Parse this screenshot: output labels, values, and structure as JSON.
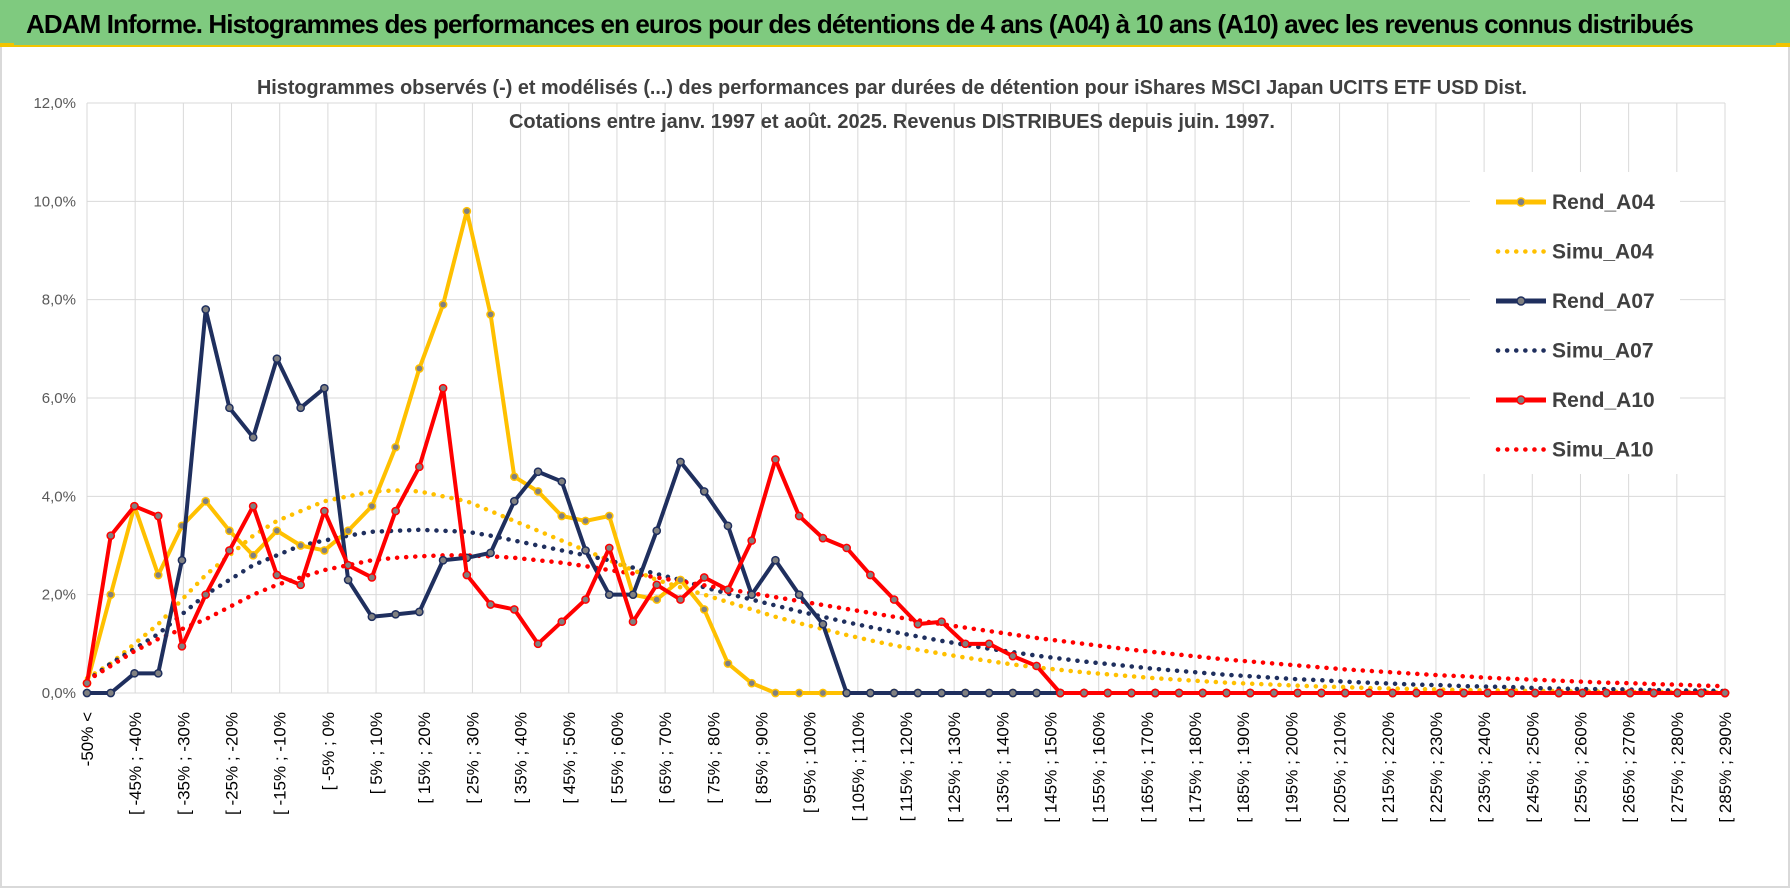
{
  "header": {
    "title": "ADAM Informe. Histogrammes des performances en euros pour des détentions de 4 ans (A04) à 10 ans (A10) avec les revenus connus distribués"
  },
  "colors": {
    "header_bg": "#7fca7f",
    "accent": "#f2c400",
    "A04": "#ffc000",
    "A07": "#1f2f5e",
    "A10": "#ff0000"
  },
  "chart_data": {
    "type": "line",
    "title": "Histogrammes observés (-) et modélisés (...) des performances par durées de détention pour iShares MSCI Japan UCITS ETF USD Dist.",
    "subtitle": "Cotations entre janv. 1997 et août. 2025. Revenus DISTRIBUES depuis juin. 1997.",
    "xlabel": "",
    "ylabel": "",
    "ylim": [
      0,
      12
    ],
    "y_ticks": [
      "0,0%",
      "2,0%",
      "4,0%",
      "6,0%",
      "8,0%",
      "10,0%",
      "12,0%"
    ],
    "grid": true,
    "legend_position": "right",
    "x_tick_labels": [
      "-50% <",
      "[ -45% ; -40%",
      "[ -35% ; -30%",
      "[ -25% ; -20%",
      "[ -15% ; -10%",
      "[ -5% ; 0%",
      "[ 5% ; 10%",
      "[ 15% ; 20%",
      "[ 25% ; 30%",
      "[ 35% ; 40%",
      "[ 45% ; 50%",
      "[ 55% ; 60%",
      "[ 65% ; 70%",
      "[ 75% ; 80%",
      "[ 85% ; 90%",
      "[ 95% ; 100%",
      "[ 105% ; 110%",
      "[ 115% ; 120%",
      "[ 125% ; 130%",
      "[ 135% ; 140%",
      "[ 145% ; 150%",
      "[ 155% ; 160%",
      "[ 165% ; 170%",
      "[ 175% ; 180%",
      "[ 185% ; 190%",
      "[ 195% ; 200%",
      "[ 205% ; 210%",
      "[ 215% ; 220%",
      "[ 225% ; 230%",
      "[ 235% ; 240%",
      "[ 245% ; 250%",
      "[ 255% ; 260%",
      "[ 265% ; 270%",
      "[ 275% ; 280%",
      "[ 285% ; 290%"
    ],
    "series": [
      {
        "name": "Rend_A04",
        "style": "solid",
        "color": "#ffc000",
        "values": [
          0.2,
          2.0,
          3.8,
          2.4,
          3.4,
          3.9,
          3.3,
          2.8,
          3.3,
          3.0,
          2.9,
          3.3,
          3.8,
          5.0,
          6.6,
          7.9,
          9.8,
          7.7,
          4.4,
          4.1,
          3.6,
          3.5,
          3.6,
          2.0,
          1.9,
          2.3,
          1.7,
          0.6,
          0.2,
          0,
          0,
          0,
          0,
          0,
          0,
          0,
          0,
          0,
          0,
          0,
          0,
          0,
          0,
          0,
          0,
          0,
          0,
          0,
          0,
          0,
          0,
          0,
          0,
          0,
          0,
          0,
          0,
          0,
          0,
          0,
          0,
          0,
          0,
          0,
          0,
          0,
          0,
          0,
          0,
          0
        ]
      },
      {
        "name": "Simu_A04",
        "style": "dotted",
        "color": "#ffc000",
        "values": [
          0.3,
          0.6,
          1.0,
          1.4,
          1.9,
          2.4,
          2.8,
          3.2,
          3.5,
          3.7,
          3.9,
          4.0,
          4.1,
          4.12,
          4.1,
          4.0,
          3.9,
          3.7,
          3.5,
          3.3,
          3.1,
          2.9,
          2.7,
          2.5,
          2.3,
          2.15,
          2.0,
          1.85,
          1.7,
          1.55,
          1.42,
          1.3,
          1.18,
          1.07,
          0.97,
          0.88,
          0.8,
          0.72,
          0.65,
          0.58,
          0.52,
          0.47,
          0.42,
          0.38,
          0.34,
          0.3,
          0.27,
          0.24,
          0.21,
          0.19,
          0.17,
          0.15,
          0.13,
          0.12,
          0.1,
          0.09,
          0.08,
          0.07,
          0.06,
          0.05,
          0.05,
          0.04,
          0.04,
          0.03,
          0.03,
          0.02,
          0.02,
          0.02,
          0.02,
          0.01
        ]
      },
      {
        "name": "Rend_A07",
        "style": "solid",
        "color": "#1f2f5e",
        "values": [
          0,
          0,
          0.4,
          0.4,
          2.7,
          7.8,
          5.8,
          5.2,
          6.8,
          5.8,
          6.2,
          2.3,
          1.55,
          1.6,
          1.65,
          2.7,
          2.75,
          2.85,
          3.9,
          4.5,
          4.3,
          2.9,
          2.0,
          2.0,
          3.3,
          4.7,
          4.1,
          3.4,
          2.0,
          2.7,
          2.0,
          1.4,
          0,
          0,
          0,
          0,
          0,
          0,
          0,
          0,
          0,
          0,
          0,
          0,
          0,
          0,
          0,
          0,
          0,
          0,
          0,
          0,
          0,
          0,
          0,
          0,
          0,
          0,
          0,
          0,
          0,
          0,
          0,
          0,
          0,
          0,
          0,
          0,
          0,
          0
        ]
      },
      {
        "name": "Simu_A07",
        "style": "dotted",
        "color": "#1f2f5e",
        "values": [
          0.25,
          0.6,
          0.9,
          1.2,
          1.6,
          2.0,
          2.3,
          2.6,
          2.8,
          3.0,
          3.1,
          3.2,
          3.28,
          3.3,
          3.32,
          3.3,
          3.28,
          3.2,
          3.1,
          3.0,
          2.9,
          2.8,
          2.7,
          2.55,
          2.42,
          2.3,
          2.15,
          2.02,
          1.9,
          1.78,
          1.66,
          1.55,
          1.44,
          1.34,
          1.24,
          1.15,
          1.06,
          0.98,
          0.9,
          0.83,
          0.76,
          0.7,
          0.64,
          0.59,
          0.54,
          0.49,
          0.45,
          0.41,
          0.37,
          0.34,
          0.31,
          0.28,
          0.26,
          0.23,
          0.21,
          0.19,
          0.17,
          0.16,
          0.14,
          0.13,
          0.12,
          0.1,
          0.09,
          0.08,
          0.08,
          0.07,
          0.06,
          0.05,
          0.05,
          0.04
        ]
      },
      {
        "name": "Rend_A10",
        "style": "solid",
        "color": "#ff0000",
        "values": [
          0.2,
          3.2,
          3.8,
          3.6,
          0.95,
          2.0,
          2.9,
          3.8,
          2.4,
          2.2,
          3.7,
          2.6,
          2.35,
          3.7,
          4.6,
          6.2,
          2.4,
          1.8,
          1.7,
          1.0,
          1.45,
          1.9,
          2.95,
          1.45,
          2.2,
          1.9,
          2.35,
          2.1,
          3.1,
          4.75,
          3.6,
          3.15,
          2.95,
          2.4,
          1.9,
          1.4,
          1.45,
          1.0,
          1.0,
          0.75,
          0.55,
          0,
          0,
          0,
          0,
          0,
          0,
          0,
          0,
          0,
          0,
          0,
          0,
          0,
          0,
          0,
          0,
          0,
          0,
          0,
          0,
          0,
          0,
          0,
          0,
          0,
          0,
          0,
          0,
          0
        ]
      },
      {
        "name": "Simu_A10",
        "style": "dotted",
        "color": "#ff0000",
        "values": [
          0.25,
          0.55,
          0.85,
          1.1,
          1.3,
          1.5,
          1.75,
          2.0,
          2.2,
          2.35,
          2.5,
          2.6,
          2.7,
          2.75,
          2.78,
          2.8,
          2.8,
          2.78,
          2.75,
          2.7,
          2.65,
          2.58,
          2.5,
          2.43,
          2.35,
          2.27,
          2.19,
          2.11,
          2.03,
          1.95,
          1.87,
          1.79,
          1.71,
          1.63,
          1.55,
          1.48,
          1.4,
          1.33,
          1.26,
          1.19,
          1.12,
          1.06,
          1.0,
          0.94,
          0.88,
          0.83,
          0.78,
          0.73,
          0.68,
          0.64,
          0.6,
          0.56,
          0.52,
          0.48,
          0.45,
          0.42,
          0.39,
          0.36,
          0.34,
          0.31,
          0.29,
          0.27,
          0.25,
          0.23,
          0.21,
          0.2,
          0.18,
          0.17,
          0.15,
          0.14
        ]
      }
    ]
  }
}
